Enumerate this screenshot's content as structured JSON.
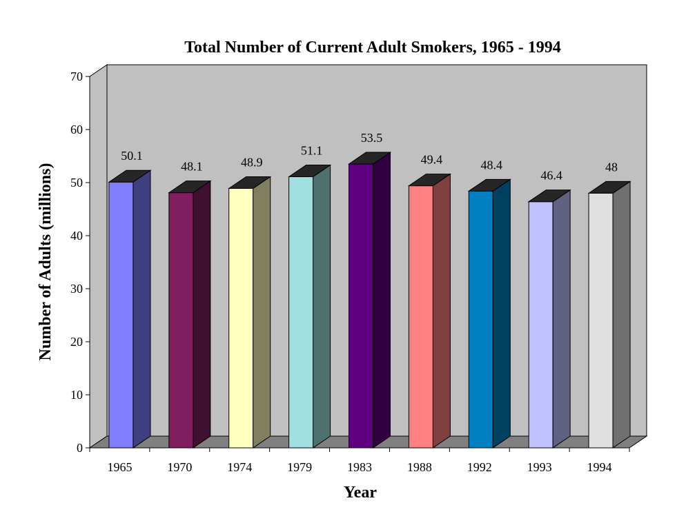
{
  "chart_data": {
    "type": "bar",
    "title": "Total Number of Current Adult Smokers, 1965 - 1994",
    "xlabel": "Year",
    "ylabel": "Number of Adults (millions)",
    "ylim": [
      0,
      70
    ],
    "yticks": [
      "0",
      "10",
      "20",
      "30",
      "40",
      "50",
      "60",
      "70"
    ],
    "grid": false,
    "style": "3d-column",
    "categories": [
      "1965",
      "1970",
      "1974",
      "1979",
      "1983",
      "1988",
      "1992",
      "1993",
      "1994"
    ],
    "values": [
      50.1,
      48.1,
      48.9,
      51.1,
      53.5,
      49.4,
      48.4,
      46.4,
      48
    ],
    "value_labels": [
      "50.1",
      "48.1",
      "48.9",
      "51.1",
      "53.5",
      "49.4",
      "48.4",
      "46.4",
      "48"
    ],
    "colors": [
      "#8080ff",
      "#7f1f5f",
      "#ffffc0",
      "#a0e0e0",
      "#600080",
      "#ff8080",
      "#0080c0",
      "#c0c0ff",
      "#e0e0e0"
    ],
    "wall_color": "#c0c0c0",
    "floor_color": "#808080"
  }
}
